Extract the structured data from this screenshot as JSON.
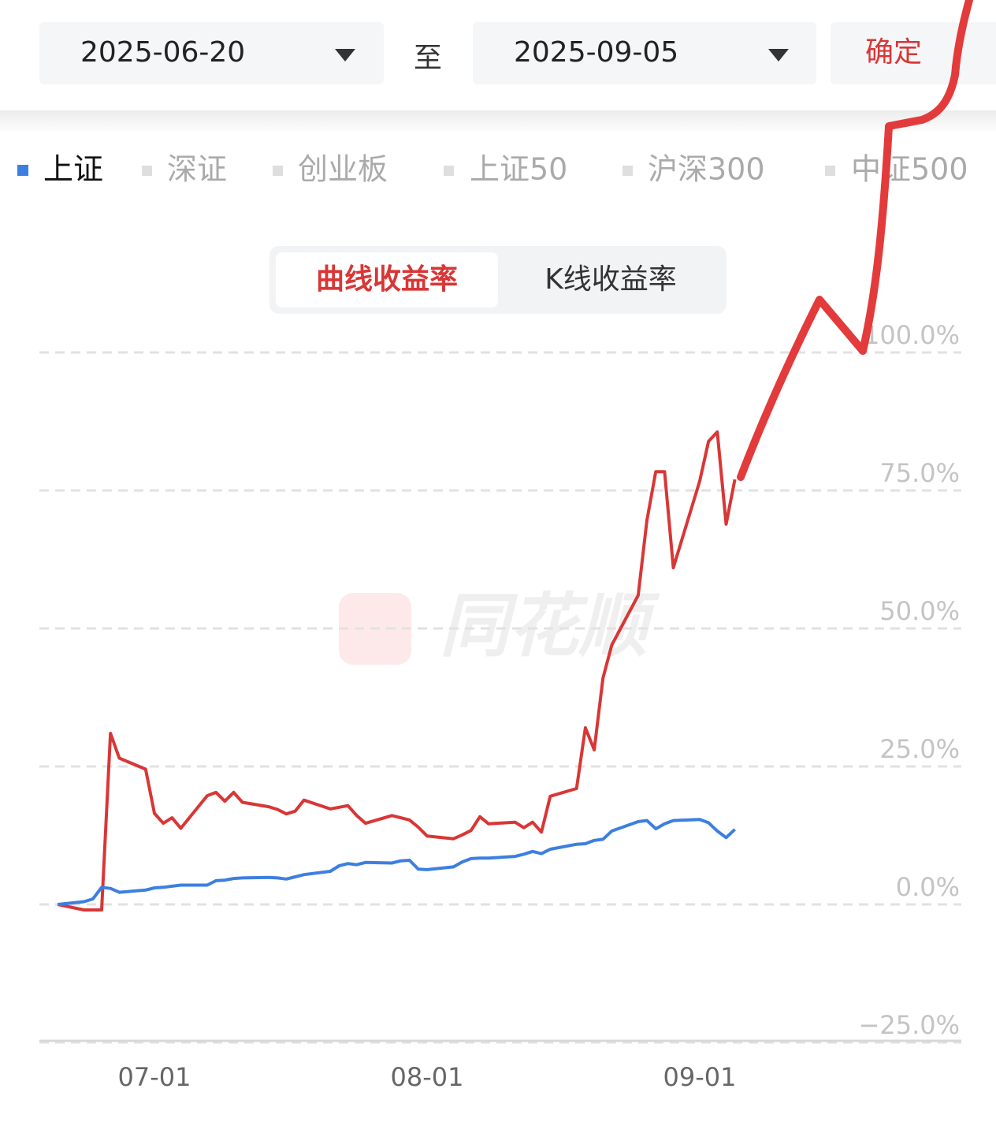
{
  "date_range": {
    "start": "2025-06-20",
    "separator": "至",
    "end": "2025-09-05",
    "confirm": "确定"
  },
  "tabs": [
    "曲线收益率",
    "K线收益率"
  ],
  "watermark": "同花顺",
  "chart_data": {
    "type": "line",
    "x": [
      "06-20",
      "06-23",
      "06-24",
      "06-25",
      "06-26",
      "06-27",
      "06-30",
      "07-01",
      "07-02",
      "07-03",
      "07-04",
      "07-07",
      "07-08",
      "07-09",
      "07-10",
      "07-11",
      "07-14",
      "07-15",
      "07-16",
      "07-17",
      "07-18",
      "07-21",
      "07-22",
      "07-23",
      "07-24",
      "07-25",
      "07-28",
      "07-29",
      "07-30",
      "07-31",
      "08-01",
      "08-04",
      "08-05",
      "08-06",
      "08-07",
      "08-08",
      "08-11",
      "08-12",
      "08-13",
      "08-14",
      "08-15",
      "08-18",
      "08-19",
      "08-20",
      "08-21",
      "08-22",
      "08-25",
      "08-26",
      "08-27",
      "08-28",
      "08-29",
      "09-01",
      "09-02",
      "09-03",
      "09-04",
      "09-05"
    ],
    "series": [
      {
        "name": "上证",
        "color": "#3d7fe0",
        "values": [
          0,
          0.5,
          1.0,
          3.1,
          2.9,
          2.2,
          2.6,
          3.0,
          3.1,
          3.3,
          3.5,
          3.5,
          4.3,
          4.4,
          4.7,
          4.8,
          4.9,
          4.8,
          4.6,
          5.0,
          5.4,
          6.0,
          7.0,
          7.4,
          7.2,
          7.6,
          7.5,
          7.9,
          8.0,
          6.4,
          6.3,
          6.8,
          7.7,
          8.3,
          8.4,
          8.4,
          8.7,
          9.1,
          9.6,
          9.2,
          10.0,
          10.9,
          11.0,
          11.6,
          11.8,
          13.3,
          15.0,
          15.2,
          13.7,
          14.6,
          15.2,
          15.4,
          14.8,
          13.3,
          12.1,
          13.6
        ]
      },
      {
        "color": "#d93636",
        "values": [
          0,
          -1,
          -1,
          -1,
          31,
          26.5,
          24.5,
          16.5,
          14.7,
          15.7,
          13.8,
          19.7,
          20.3,
          18.7,
          20.3,
          18.5,
          17.7,
          17.2,
          16.4,
          16.9,
          18.9,
          17.3,
          17.6,
          17.9,
          16.1,
          14.7,
          16.1,
          15.7,
          15.3,
          14.0,
          12.4,
          11.9,
          12.6,
          13.4,
          15.9,
          14.6,
          14.9,
          13.9,
          14.9,
          13.1,
          19.6,
          21,
          32,
          28,
          41,
          47,
          56,
          69.6,
          78.4,
          78.4,
          61,
          76.7,
          83.9,
          85.6,
          68.9,
          77
        ]
      }
    ],
    "inactive_series": [
      "深证",
      "创业板",
      "上证50",
      "沪深300",
      "中证500"
    ],
    "xticks": [
      "07-01",
      "08-01",
      "09-01"
    ],
    "ylim": [
      -25,
      100
    ],
    "yticks": [
      {
        "value": -25,
        "label": "−25.0%"
      },
      {
        "value": 0,
        "label": "0.0%"
      },
      {
        "value": 25,
        "label": "25.0%"
      },
      {
        "value": 50,
        "label": "50.0%"
      },
      {
        "value": 75,
        "label": "75.0%"
      },
      {
        "value": 100,
        "label": "100.0%"
      }
    ],
    "grid": true
  }
}
